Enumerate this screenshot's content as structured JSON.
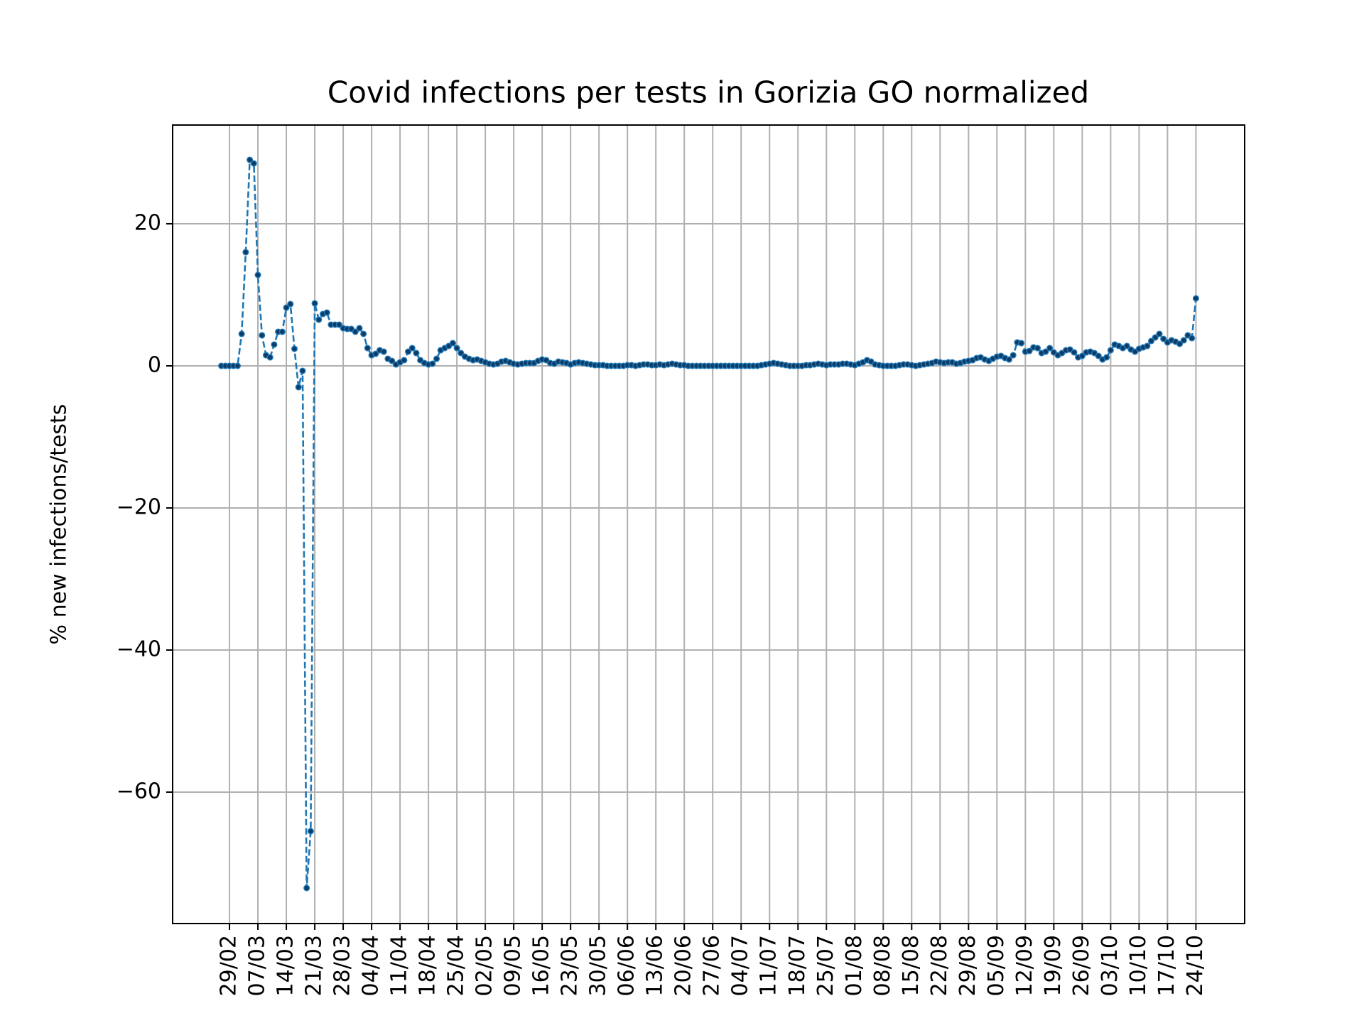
{
  "chart_data": {
    "type": "line",
    "title": "Covid infections per tests in Gorizia GO normalized",
    "y_label": "% new infections/tests",
    "categories": [
      null,
      null,
      "29/02",
      null,
      null,
      null,
      null,
      null,
      null,
      "07/03",
      null,
      null,
      null,
      null,
      null,
      null,
      "14/03",
      null,
      null,
      null,
      null,
      null,
      null,
      "21/03",
      null,
      null,
      null,
      null,
      null,
      null,
      "28/03",
      null,
      null,
      null,
      null,
      null,
      null,
      "04/04",
      null,
      null,
      null,
      null,
      null,
      null,
      "11/04",
      null,
      null,
      null,
      null,
      null,
      null,
      "18/04",
      null,
      null,
      null,
      null,
      null,
      null,
      "25/04",
      null,
      null,
      null,
      null,
      null,
      null,
      "02/05",
      null,
      null,
      null,
      null,
      null,
      null,
      "09/05",
      null,
      null,
      null,
      null,
      null,
      null,
      "16/05",
      null,
      null,
      null,
      null,
      null,
      null,
      "23/05",
      null,
      null,
      null,
      null,
      null,
      null,
      "30/05",
      null,
      null,
      null,
      null,
      null,
      null,
      "06/06",
      null,
      null,
      null,
      null,
      null,
      null,
      "13/06",
      null,
      null,
      null,
      null,
      null,
      null,
      "20/06",
      null,
      null,
      null,
      null,
      null,
      null,
      "27/06",
      null,
      null,
      null,
      null,
      null,
      null,
      "04/07",
      null,
      null,
      null,
      null,
      null,
      null,
      "11/07",
      null,
      null,
      null,
      null,
      null,
      null,
      "18/07",
      null,
      null,
      null,
      null,
      null,
      null,
      "25/07",
      null,
      null,
      null,
      null,
      null,
      null,
      "01/08",
      null,
      null,
      null,
      null,
      null,
      null,
      "08/08",
      null,
      null,
      null,
      null,
      null,
      null,
      "15/08",
      null,
      null,
      null,
      null,
      null,
      null,
      "22/08",
      null,
      null,
      null,
      null,
      null,
      null,
      "29/08",
      null,
      null,
      null,
      null,
      null,
      null,
      "05/09",
      null,
      null,
      null,
      null,
      null,
      null,
      "12/09",
      null,
      null,
      null,
      null,
      null,
      null,
      "19/09",
      null,
      null,
      null,
      null,
      null,
      null,
      "26/09",
      null,
      null,
      null,
      null,
      null,
      null,
      "03/10",
      null,
      null,
      null,
      null,
      null,
      null,
      "10/10",
      null,
      null,
      null,
      null,
      null,
      null,
      "17/10",
      null,
      null,
      null,
      null,
      null,
      null,
      "24/10"
    ],
    "values": [
      0,
      0,
      0,
      0,
      0,
      4.5,
      16,
      29,
      28.5,
      12.8,
      4.3,
      1.5,
      1.2,
      3,
      4.8,
      4.8,
      8.2,
      8.7,
      2.4,
      -3,
      -0.7,
      -73.5,
      -65.5,
      8.8,
      6.5,
      7.3,
      7.5,
      5.8,
      5.8,
      5.8,
      5.3,
      5.2,
      5.2,
      4.8,
      5.3,
      4.5,
      2.5,
      1.5,
      1.7,
      2.2,
      2,
      1,
      0.7,
      0.2,
      0.5,
      0.8,
      2,
      2.5,
      1.8,
      0.8,
      0.4,
      0.2,
      0.3,
      1,
      2.2,
      2.5,
      2.8,
      3.2,
      2.5,
      1.8,
      1.3,
      1,
      0.8,
      0.9,
      0.7,
      0.5,
      0.3,
      0.2,
      0.3,
      0.6,
      0.7,
      0.5,
      0.3,
      0.2,
      0.3,
      0.4,
      0.4,
      0.4,
      0.7,
      0.9,
      0.8,
      0.4,
      0.3,
      0.6,
      0.5,
      0.4,
      0.2,
      0.4,
      0.5,
      0.4,
      0.3,
      0.2,
      0.1,
      0.1,
      0.1,
      0,
      0,
      0,
      0,
      0,
      0.1,
      0.1,
      0,
      0.1,
      0.2,
      0.2,
      0.1,
      0.1,
      0.2,
      0.1,
      0.2,
      0.3,
      0.2,
      0.1,
      0.1,
      0,
      0,
      0,
      0,
      0,
      0,
      0,
      0,
      0,
      0,
      0,
      0,
      0,
      0,
      0,
      0,
      0,
      0,
      0.1,
      0.2,
      0.3,
      0.4,
      0.3,
      0.2,
      0.1,
      0,
      0,
      0,
      0,
      0.1,
      0.1,
      0.2,
      0.3,
      0.2,
      0.1,
      0.2,
      0.2,
      0.2,
      0.3,
      0.3,
      0.2,
      0.1,
      0.3,
      0.5,
      0.8,
      0.6,
      0.2,
      0.1,
      0,
      0,
      0,
      0,
      0.1,
      0.2,
      0.2,
      0.1,
      0,
      0.1,
      0.2,
      0.3,
      0.4,
      0.6,
      0.5,
      0.4,
      0.5,
      0.5,
      0.3,
      0.4,
      0.6,
      0.7,
      0.8,
      1.1,
      1.2,
      0.9,
      0.7,
      1,
      1.3,
      1.4,
      1.1,
      0.9,
      1.5,
      3.3,
      3.2,
      2,
      2.1,
      2.6,
      2.5,
      1.8,
      2,
      2.5,
      1.9,
      1.5,
      1.8,
      2.2,
      2.3,
      1.9,
      1.2,
      1.4,
      1.9,
      2,
      1.8,
      1.4,
      0.9,
      1.2,
      2.2,
      3,
      2.8,
      2.5,
      2.8,
      2.3,
      2,
      2.4,
      2.6,
      2.8,
      3.5,
      4,
      4.5,
      3.8,
      3.3,
      3.6,
      3.4,
      3.1,
      3.6,
      4.3,
      3.9,
      9.5
    ],
    "color": "#1f77b4",
    "marker_color": "#0d3b66",
    "line_style": "dashed",
    "ylim": [
      -78.5,
      33.9
    ],
    "yticks": [
      {
        "value": -60,
        "label": "−60"
      },
      {
        "value": -40,
        "label": "−40"
      },
      {
        "value": -20,
        "label": "−20"
      },
      0,
      20
    ],
    "grid": true
  }
}
